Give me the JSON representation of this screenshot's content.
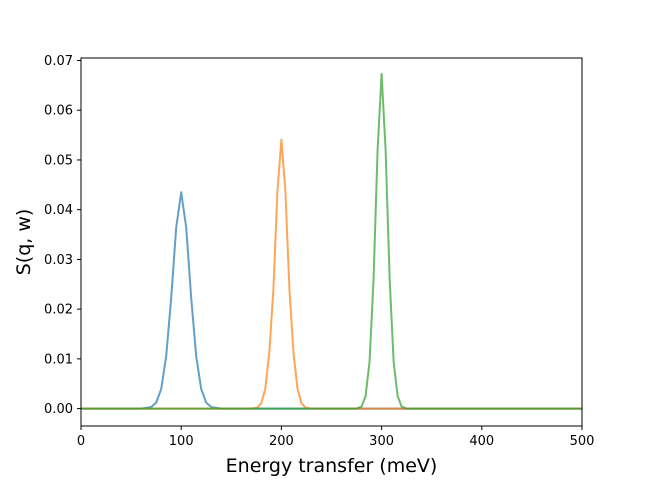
{
  "chart_data": {
    "type": "line",
    "title": "",
    "xlabel": "Energy transfer (meV)",
    "ylabel": "S(q, w)",
    "xlim": [
      0,
      500
    ],
    "ylim": [
      -0.0035,
      0.0705
    ],
    "xticks": [
      0,
      100,
      200,
      300,
      400,
      500
    ],
    "xtick_labels": [
      "0",
      "100",
      "200",
      "300",
      "400",
      "500"
    ],
    "yticks": [
      0.0,
      0.01,
      0.02,
      0.03,
      0.04,
      0.05,
      0.06,
      0.07
    ],
    "ytick_labels": [
      "0.00",
      "0.01",
      "0.02",
      "0.03",
      "0.04",
      "0.05",
      "0.06",
      "0.07"
    ],
    "grid": false,
    "legend": null,
    "series": [
      {
        "color": "#1f77b4",
        "x": [
          0,
          60,
          70,
          75,
          80,
          85,
          90,
          95,
          100,
          105,
          110,
          115,
          120,
          125,
          130,
          140,
          500
        ],
        "y": [
          0.0,
          0.0,
          0.0003,
          0.0012,
          0.0039,
          0.0105,
          0.0222,
          0.0364,
          0.0435,
          0.0364,
          0.0222,
          0.0105,
          0.0039,
          0.0012,
          0.0003,
          0.0,
          0.0
        ]
      },
      {
        "color": "#ff7f0e",
        "x": [
          0,
          170,
          176,
          180,
          184,
          188,
          192,
          196,
          200,
          204,
          208,
          212,
          216,
          220,
          224,
          230,
          500
        ],
        "y": [
          0.0,
          0.0,
          0.0002,
          0.0011,
          0.0041,
          0.0114,
          0.024,
          0.0436,
          0.0541,
          0.0436,
          0.024,
          0.0114,
          0.0041,
          0.0011,
          0.0002,
          0.0,
          0.0
        ]
      },
      {
        "color": "#2ca02c",
        "x": [
          0,
          275,
          280,
          284,
          288,
          292,
          296,
          300,
          304,
          308,
          312,
          316,
          320,
          325,
          500
        ],
        "y": [
          0.0,
          0.0,
          0.0004,
          0.0025,
          0.0095,
          0.0262,
          0.052,
          0.0673,
          0.052,
          0.0262,
          0.0095,
          0.0025,
          0.0004,
          0.0,
          0.0
        ]
      }
    ]
  }
}
